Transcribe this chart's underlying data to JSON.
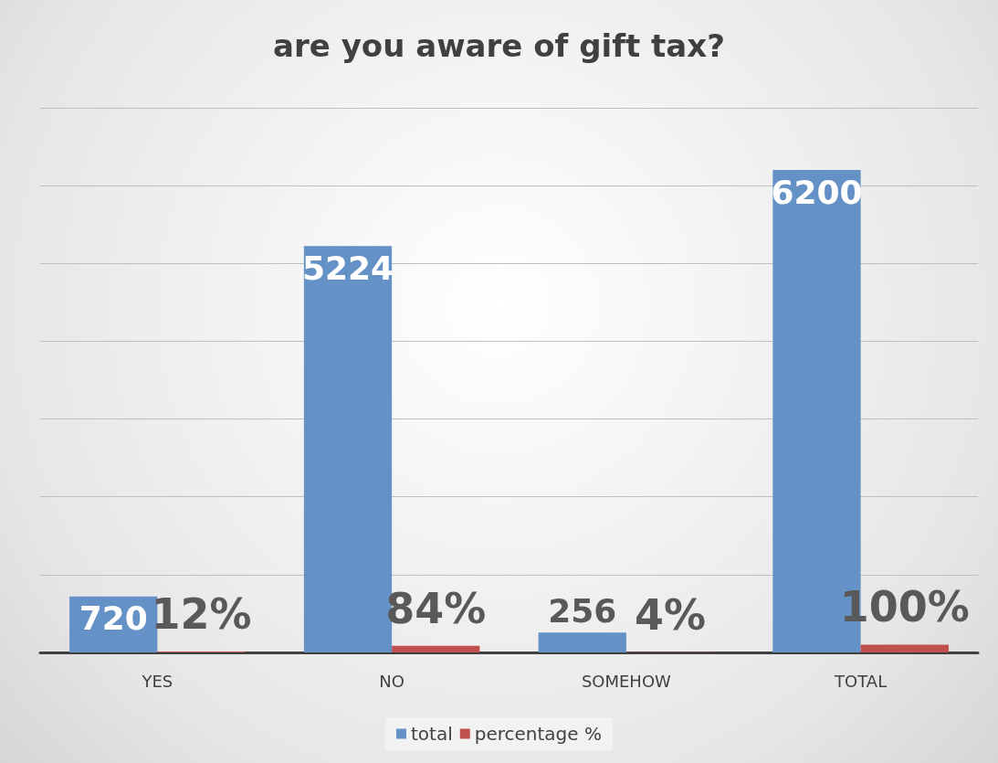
{
  "chart_data": {
    "type": "bar",
    "title": "are you aware of gift tax?",
    "categories": [
      "YES",
      "NO",
      "SOMEHOW",
      "TOTAL"
    ],
    "series": [
      {
        "name": "total",
        "color": "#6592c6",
        "values": [
          720,
          5224,
          256,
          6200
        ],
        "data_labels": true
      },
      {
        "name": "percentage %",
        "color": "#c0504d",
        "values": [
          12,
          84,
          4,
          100
        ],
        "value_labels": [
          "12%",
          "84%",
          "4%",
          "100%"
        ]
      }
    ],
    "ylim": [
      0,
      7000
    ],
    "yticks": [
      0,
      1000,
      2000,
      3000,
      4000,
      5000,
      6000,
      7000
    ],
    "grid": "y",
    "tick_labels": "x",
    "legend": "bottom"
  }
}
